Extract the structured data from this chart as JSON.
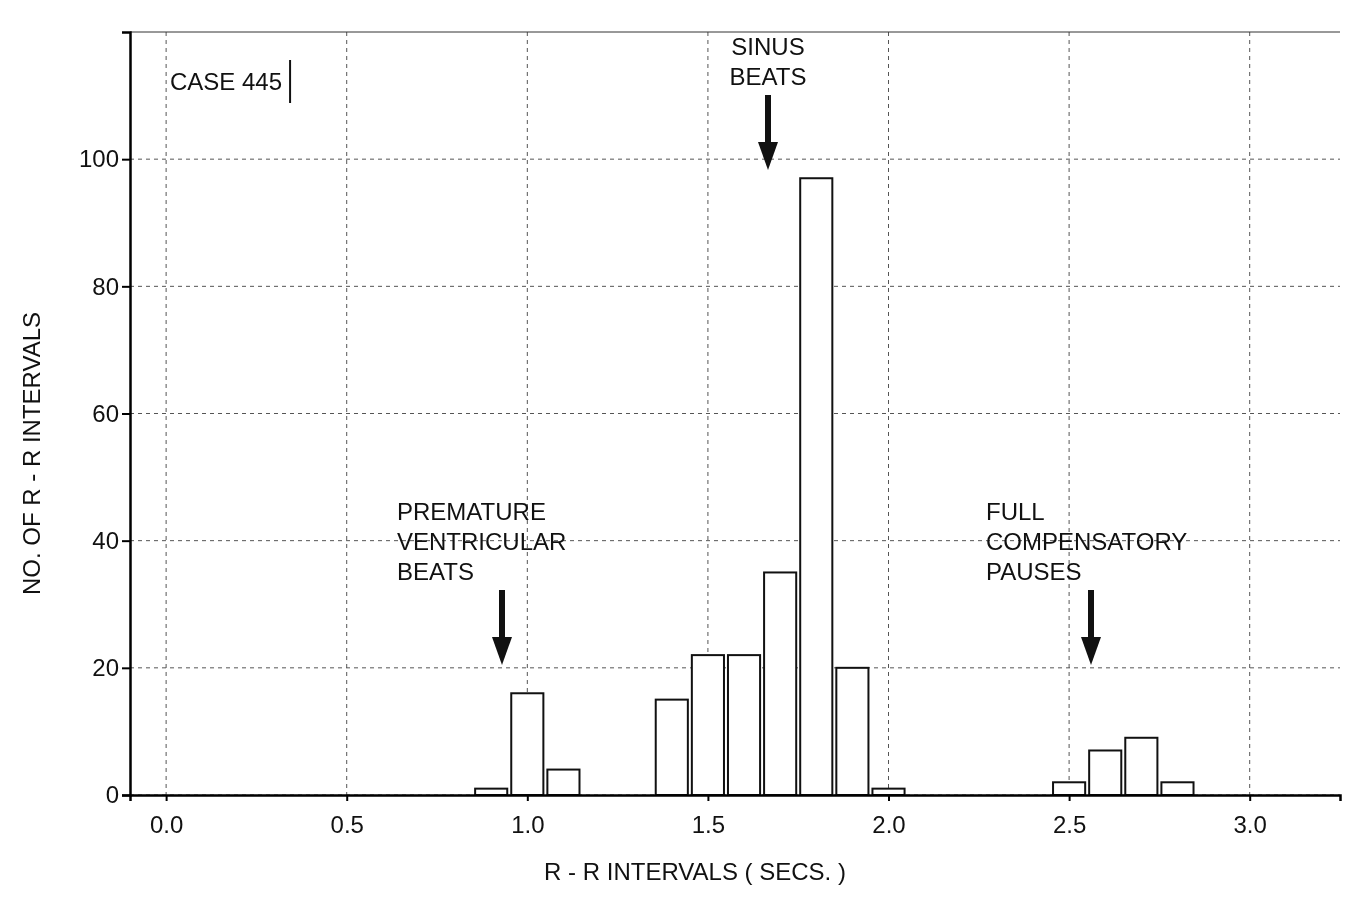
{
  "chart_data": {
    "type": "histogram",
    "xlabel": "R - R INTERVALS ( SECS. )",
    "ylabel": "NO. OF R - R INTERVALS",
    "bins": [
      0.85,
      0.95,
      1.05,
      1.15,
      1.25,
      1.35,
      1.45,
      1.55,
      1.65,
      1.75,
      1.85,
      1.95,
      2.05,
      2.15,
      2.25,
      2.35,
      2.45,
      2.55,
      2.65,
      2.75,
      2.85
    ],
    "values": [
      1,
      16,
      4,
      0,
      0,
      15,
      22,
      22,
      35,
      97,
      20,
      1,
      0,
      0,
      0,
      0,
      2,
      7,
      9,
      2
    ],
    "color": "#ffffff",
    "xlim": [
      -0.1,
      3.25
    ],
    "ylim": [
      0,
      120
    ],
    "xticks": [
      {
        "value": 0,
        "label": "0.0"
      },
      0.5,
      {
        "value": 1,
        "label": "1.0"
      },
      1.5,
      {
        "value": 2,
        "label": "2.0"
      },
      2.5,
      {
        "value": 3,
        "label": "3.0"
      }
    ],
    "yticks": [
      0,
      20,
      40,
      60,
      80,
      100
    ],
    "grid": true,
    "annotations": [
      "CASE 445",
      "SINUS\nBEATS",
      "PREMATURE\nVENTRICULAR\nBEATS",
      "FULL\nCOMPENSATORY\nPAUSES"
    ]
  }
}
